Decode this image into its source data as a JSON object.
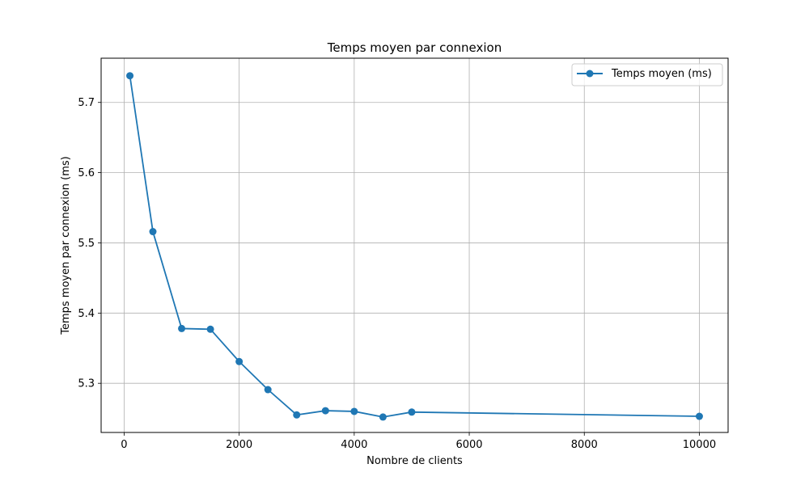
{
  "chart_data": {
    "type": "line",
    "title": "Temps moyen par connexion",
    "xlabel": "Nombre de clients",
    "ylabel": "Temps moyen par connexion (ms)",
    "xlim": [
      -400,
      10500
    ],
    "ylim": [
      5.23,
      5.763
    ],
    "xticks": [
      0,
      2000,
      4000,
      6000,
      8000,
      10000
    ],
    "xtick_labels": [
      "0",
      "2000",
      "4000",
      "6000",
      "8000",
      "10000"
    ],
    "yticks": [
      5.3,
      5.4,
      5.5,
      5.6,
      5.7
    ],
    "ytick_labels": [
      "5.3",
      "5.4",
      "5.5",
      "5.6",
      "5.7"
    ],
    "grid": true,
    "legend_position": "top-right",
    "series": [
      {
        "name": "Temps moyen (ms)",
        "color": "#1f77b4",
        "marker": "circle",
        "x": [
          100,
          500,
          1000,
          1500,
          2000,
          2500,
          3000,
          3500,
          4000,
          4500,
          5000,
          10000
        ],
        "y": [
          5.738,
          5.516,
          5.378,
          5.377,
          5.331,
          5.291,
          5.255,
          5.261,
          5.26,
          5.252,
          5.259,
          5.253
        ]
      }
    ]
  }
}
